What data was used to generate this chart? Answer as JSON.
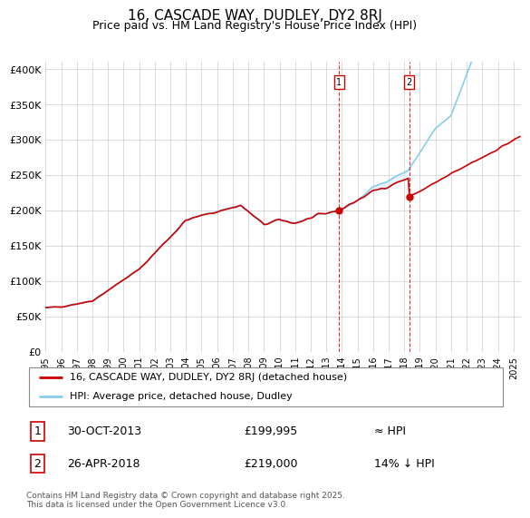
{
  "title": "16, CASCADE WAY, DUDLEY, DY2 8RJ",
  "subtitle": "Price paid vs. HM Land Registry's House Price Index (HPI)",
  "ylim": [
    0,
    410000
  ],
  "yticks": [
    0,
    50000,
    100000,
    150000,
    200000,
    250000,
    300000,
    350000,
    400000
  ],
  "ytick_labels": [
    "£0",
    "£50K",
    "£100K",
    "£150K",
    "£200K",
    "£250K",
    "£300K",
    "£350K",
    "£400K"
  ],
  "xlim_start": 1995.0,
  "xlim_end": 2025.5,
  "xticks": [
    1995,
    1996,
    1997,
    1998,
    1999,
    2000,
    2001,
    2002,
    2003,
    2004,
    2005,
    2006,
    2007,
    2008,
    2009,
    2010,
    2011,
    2012,
    2013,
    2014,
    2015,
    2016,
    2017,
    2018,
    2019,
    2020,
    2021,
    2022,
    2023,
    2024,
    2025
  ],
  "sale1_x": 2013.83,
  "sale1_y": 199995,
  "sale2_x": 2018.32,
  "sale2_y": 219000,
  "sale1_date": "30-OCT-2013",
  "sale1_price": "£199,995",
  "sale1_hpi": "≈ HPI",
  "sale2_date": "26-APR-2018",
  "sale2_price": "£219,000",
  "sale2_hpi": "14% ↓ HPI",
  "legend_line1": "16, CASCADE WAY, DUDLEY, DY2 8RJ (detached house)",
  "legend_line2": "HPI: Average price, detached house, Dudley",
  "footnote": "Contains HM Land Registry data © Crown copyright and database right 2025.\nThis data is licensed under the Open Government Licence v3.0.",
  "line_color_red": "#cc0000",
  "line_color_blue": "#87CEEB",
  "shade_color": "#ddeeff",
  "grid_color": "#cccccc"
}
